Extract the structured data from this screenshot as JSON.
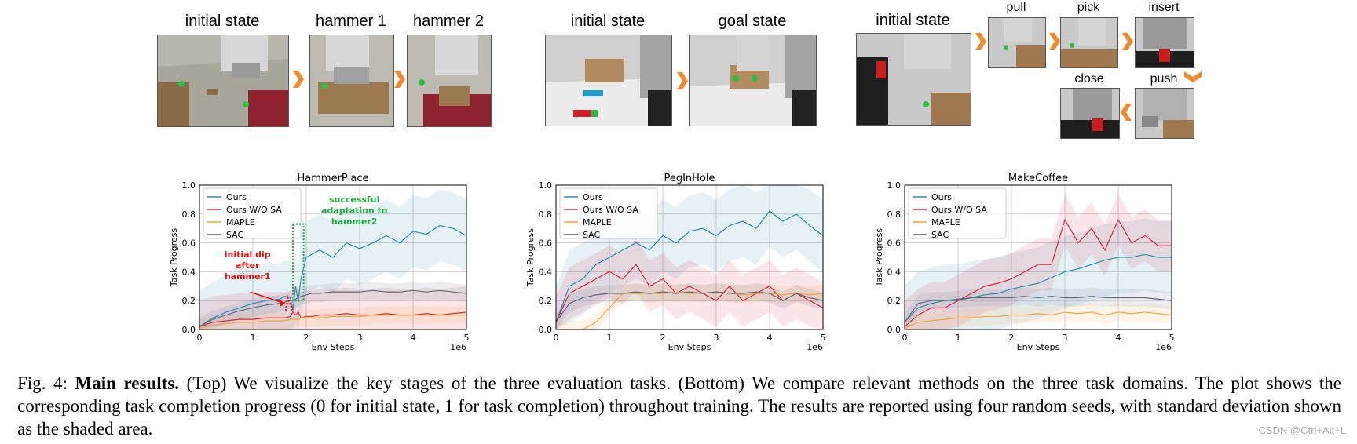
{
  "top": {
    "hammer": {
      "initial": "initial state",
      "h1": "hammer 1",
      "h2": "hammer 2"
    },
    "peg": {
      "initial": "initial state",
      "goal": "goal state"
    },
    "coffee": {
      "initial": "initial state",
      "pull": "pull",
      "pick": "pick",
      "insert": "insert",
      "close": "close",
      "push": "push"
    }
  },
  "colors": {
    "ours": "#2e8fb5",
    "wosa": "#d6283f",
    "maple": "#f4a340",
    "sac": "#5c6a80",
    "arrow": "#f08a2c",
    "green_annot": "#22a845",
    "red_annot": "#e01010"
  },
  "charts": [
    {
      "title": "HammerPlace",
      "annotations": {
        "green": [
          "successful",
          "adaptation to",
          "hammer2"
        ],
        "red": [
          "initial dip",
          "after",
          "hammer1"
        ]
      }
    },
    {
      "title": "PegInHole"
    },
    {
      "title": "MakeCoffee"
    }
  ],
  "chart_data": [
    {
      "type": "line",
      "title": "HammerPlace",
      "xlabel": "Env Steps",
      "ylabel": "Task Progress",
      "x_multiplier": "1e6",
      "xlim": [
        0,
        5
      ],
      "ylim": [
        0,
        1.0
      ],
      "xticks": [
        "0",
        "1",
        "2",
        "3",
        "4",
        "5"
      ],
      "yticks": [
        "0.0",
        "0.2",
        "0.4",
        "0.6",
        "0.8",
        "1.0"
      ],
      "legend": [
        "Ours",
        "Ours W/O SA",
        "MAPLE",
        "SAC"
      ],
      "x": [
        0,
        0.25,
        0.5,
        0.75,
        1,
        1.25,
        1.5,
        1.6,
        1.7,
        1.75,
        1.8,
        1.85,
        1.9,
        2,
        2.1,
        2.25,
        2.5,
        2.75,
        3,
        3.25,
        3.5,
        3.75,
        4,
        4.25,
        4.5,
        4.75,
        5
      ],
      "series": [
        {
          "name": "Ours",
          "values": [
            0.02,
            0.08,
            0.12,
            0.15,
            0.18,
            0.2,
            0.21,
            0.23,
            0.22,
            0.14,
            0.3,
            0.2,
            0.35,
            0.5,
            0.52,
            0.55,
            0.5,
            0.6,
            0.56,
            0.6,
            0.65,
            0.6,
            0.68,
            0.66,
            0.72,
            0.7,
            0.65
          ]
        },
        {
          "name": "Ours W/O SA",
          "values": [
            0.02,
            0.05,
            0.06,
            0.07,
            0.07,
            0.08,
            0.08,
            0.08,
            0.09,
            0.12,
            0.1,
            0.12,
            0.08,
            0.09,
            0.09,
            0.1,
            0.1,
            0.11,
            0.1,
            0.1,
            0.11,
            0.1,
            0.1,
            0.11,
            0.1,
            0.11,
            0.12
          ]
        },
        {
          "name": "MAPLE",
          "values": [
            0.01,
            0.03,
            0.04,
            0.05,
            0.05,
            0.06,
            0.06,
            0.06,
            0.07,
            0.07,
            0.07,
            0.07,
            0.08,
            0.08,
            0.08,
            0.08,
            0.09,
            0.09,
            0.09,
            0.1,
            0.1,
            0.1,
            0.1,
            0.1,
            0.1,
            0.1,
            0.1
          ]
        },
        {
          "name": "SAC",
          "values": [
            0.02,
            0.07,
            0.1,
            0.13,
            0.15,
            0.17,
            0.18,
            0.19,
            0.2,
            0.2,
            0.21,
            0.22,
            0.23,
            0.24,
            0.25,
            0.25,
            0.26,
            0.26,
            0.26,
            0.27,
            0.26,
            0.26,
            0.27,
            0.26,
            0.27,
            0.26,
            0.25
          ]
        }
      ]
    },
    {
      "type": "line",
      "title": "PegInHole",
      "xlabel": "Env Steps",
      "ylabel": "Task Progress",
      "x_multiplier": "1e6",
      "xlim": [
        0,
        5
      ],
      "ylim": [
        0,
        1.0
      ],
      "xticks": [
        "0",
        "1",
        "2",
        "3",
        "4",
        "5"
      ],
      "yticks": [
        "0.0",
        "0.2",
        "0.4",
        "0.6",
        "0.8",
        "1.0"
      ],
      "legend": [
        "Ours",
        "Ours W/O SA",
        "MAPLE",
        "SAC"
      ],
      "x": [
        0,
        0.25,
        0.5,
        0.75,
        1,
        1.25,
        1.5,
        1.75,
        2,
        2.25,
        2.5,
        2.75,
        3,
        3.25,
        3.5,
        3.75,
        4,
        4.25,
        4.5,
        4.75,
        5
      ],
      "series": [
        {
          "name": "Ours",
          "values": [
            0.05,
            0.3,
            0.35,
            0.45,
            0.5,
            0.55,
            0.6,
            0.55,
            0.65,
            0.6,
            0.68,
            0.7,
            0.65,
            0.72,
            0.75,
            0.7,
            0.82,
            0.75,
            0.8,
            0.72,
            0.65
          ]
        },
        {
          "name": "Ours W/O SA",
          "values": [
            0.05,
            0.25,
            0.3,
            0.35,
            0.4,
            0.35,
            0.45,
            0.3,
            0.35,
            0.25,
            0.3,
            0.25,
            0.2,
            0.3,
            0.2,
            0.25,
            0.3,
            0.2,
            0.25,
            0.2,
            0.15
          ]
        },
        {
          "name": "MAPLE",
          "values": [
            0.0,
            0.0,
            0.0,
            0.05,
            0.15,
            0.25,
            0.25,
            0.25,
            0.25,
            0.26,
            0.25,
            0.25,
            0.26,
            0.25,
            0.24,
            0.25,
            0.25,
            0.24,
            0.25,
            0.24,
            0.25
          ]
        },
        {
          "name": "SAC",
          "values": [
            0.05,
            0.18,
            0.22,
            0.24,
            0.25,
            0.25,
            0.26,
            0.25,
            0.26,
            0.25,
            0.26,
            0.25,
            0.26,
            0.25,
            0.25,
            0.26,
            0.25,
            0.2,
            0.25,
            0.22,
            0.2
          ]
        }
      ]
    },
    {
      "type": "line",
      "title": "MakeCoffee",
      "xlabel": "Env Steps",
      "ylabel": "Task Progress",
      "x_multiplier": "1e6",
      "xlim": [
        0,
        5
      ],
      "ylim": [
        0,
        1.0
      ],
      "xticks": [
        "0",
        "1",
        "2",
        "3",
        "4",
        "5"
      ],
      "yticks": [
        "0.0",
        "0.2",
        "0.4",
        "0.6",
        "0.8",
        "1.0"
      ],
      "legend": [
        "Ours",
        "Ours W/O SA",
        "MAPLE",
        "SAC"
      ],
      "x": [
        0,
        0.25,
        0.5,
        0.75,
        1,
        1.25,
        1.5,
        1.75,
        2,
        2.25,
        2.5,
        2.75,
        3,
        3.25,
        3.5,
        3.75,
        4,
        4.25,
        4.5,
        4.75,
        5
      ],
      "series": [
        {
          "name": "Ours",
          "values": [
            0.05,
            0.15,
            0.18,
            0.2,
            0.2,
            0.22,
            0.24,
            0.25,
            0.28,
            0.3,
            0.32,
            0.36,
            0.4,
            0.42,
            0.45,
            0.48,
            0.5,
            0.5,
            0.52,
            0.5,
            0.5
          ]
        },
        {
          "name": "Ours W/O SA",
          "values": [
            0.02,
            0.1,
            0.15,
            0.15,
            0.2,
            0.25,
            0.3,
            0.32,
            0.35,
            0.4,
            0.45,
            0.45,
            0.76,
            0.6,
            0.7,
            0.55,
            0.76,
            0.6,
            0.65,
            0.58,
            0.58
          ]
        },
        {
          "name": "MAPLE",
          "values": [
            0.01,
            0.05,
            0.06,
            0.07,
            0.08,
            0.08,
            0.09,
            0.09,
            0.1,
            0.1,
            0.11,
            0.1,
            0.12,
            0.11,
            0.12,
            0.1,
            0.12,
            0.11,
            0.12,
            0.11,
            0.1
          ]
        },
        {
          "name": "SAC",
          "values": [
            0.05,
            0.18,
            0.2,
            0.2,
            0.21,
            0.22,
            0.22,
            0.22,
            0.22,
            0.23,
            0.22,
            0.23,
            0.22,
            0.22,
            0.23,
            0.22,
            0.22,
            0.22,
            0.22,
            0.21,
            0.2
          ]
        }
      ]
    }
  ],
  "caption": {
    "prefix": "Fig. 4: ",
    "bold": "Main results.",
    "text": " (Top) We visualize the key stages of the three evaluation tasks. (Bottom) We compare relevant methods on the three task domains. The plot shows the corresponding task completion progress (0 for initial state, 1 for task completion) throughout training. The results are reported using four random seeds, with standard deviation shown as the shaded area."
  },
  "watermark": "CSDN @Ctrl+Alt+L"
}
